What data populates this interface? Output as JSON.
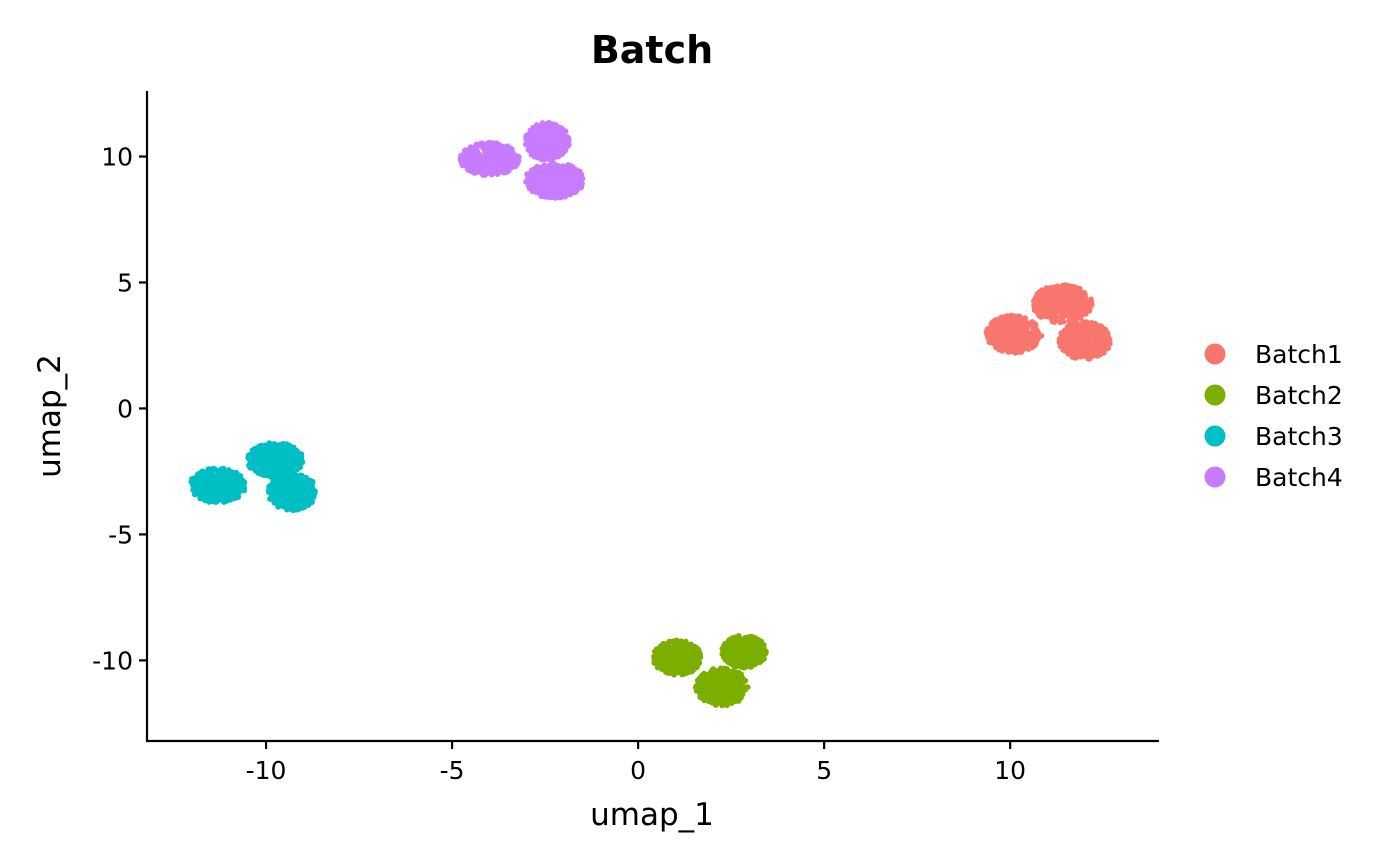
{
  "chart_data": {
    "type": "scatter",
    "title": "Batch",
    "xlabel": "umap_1",
    "ylabel": "umap_2",
    "xlim": [
      -13.2,
      14
    ],
    "ylim": [
      -13.2,
      12.6
    ],
    "x_ticks": [
      -10,
      -5,
      0,
      5,
      10
    ],
    "y_ticks": [
      -10,
      -5,
      0,
      5,
      10
    ],
    "x_tick_labels": [
      "-10",
      "-5",
      "0",
      "5",
      "10"
    ],
    "y_tick_labels": [
      "-10",
      "-5",
      "0",
      "5",
      "10"
    ],
    "grid": false,
    "legend": {
      "position": "right",
      "marker": "circle"
    },
    "series": [
      {
        "name": "Batch1",
        "color": "#F8766D",
        "clusters": [
          {
            "cx": 10.1,
            "cy": 2.95,
            "rx": 0.75,
            "ry": 0.75
          },
          {
            "cx": 11.4,
            "cy": 4.15,
            "rx": 0.8,
            "ry": 0.75
          },
          {
            "cx": 12.0,
            "cy": 2.7,
            "rx": 0.7,
            "ry": 0.75
          }
        ]
      },
      {
        "name": "Batch2",
        "color": "#7CAE00",
        "clusters": [
          {
            "cx": 1.05,
            "cy": -9.9,
            "rx": 0.65,
            "ry": 0.7
          },
          {
            "cx": 2.85,
            "cy": -9.65,
            "rx": 0.6,
            "ry": 0.65
          },
          {
            "cx": 2.25,
            "cy": -11.05,
            "rx": 0.7,
            "ry": 0.75
          }
        ]
      },
      {
        "name": "Batch3",
        "color": "#00BFC4",
        "clusters": [
          {
            "cx": -11.3,
            "cy": -3.05,
            "rx": 0.75,
            "ry": 0.7
          },
          {
            "cx": -9.75,
            "cy": -2.05,
            "rx": 0.75,
            "ry": 0.7
          },
          {
            "cx": -9.3,
            "cy": -3.3,
            "rx": 0.65,
            "ry": 0.75
          }
        ]
      },
      {
        "name": "Batch4",
        "color": "#C77CFF",
        "clusters": [
          {
            "cx": -4.0,
            "cy": 9.9,
            "rx": 0.8,
            "ry": 0.65
          },
          {
            "cx": -2.45,
            "cy": 10.6,
            "rx": 0.6,
            "ry": 0.75
          },
          {
            "cx": -2.25,
            "cy": 9.05,
            "rx": 0.8,
            "ry": 0.7
          }
        ]
      }
    ]
  }
}
